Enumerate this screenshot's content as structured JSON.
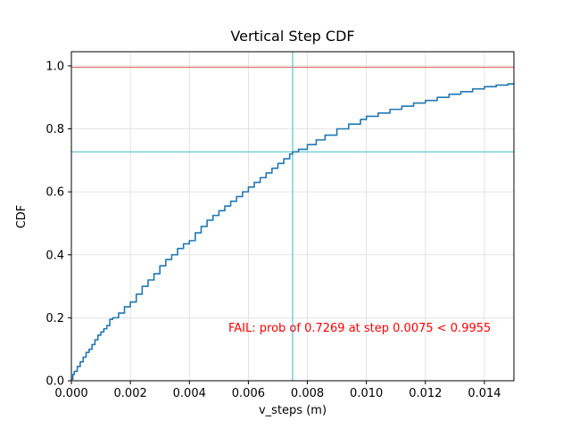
{
  "chart_data": {
    "type": "line",
    "style": "step-cdf",
    "title": "Vertical Step CDF",
    "xlabel": "v_steps (m)",
    "ylabel": "CDF",
    "xlim": [
      0.0,
      0.015
    ],
    "ylim": [
      0.0,
      1.045
    ],
    "grid": true,
    "x_ticks": [
      {
        "v": 0.0,
        "label": "0.000"
      },
      {
        "v": 0.002,
        "label": "0.002"
      },
      {
        "v": 0.004,
        "label": "0.004"
      },
      {
        "v": 0.006,
        "label": "0.006"
      },
      {
        "v": 0.008,
        "label": "0.008"
      },
      {
        "v": 0.01,
        "label": "0.010"
      },
      {
        "v": 0.012,
        "label": "0.012"
      },
      {
        "v": 0.014,
        "label": "0.014"
      }
    ],
    "y_ticks": [
      {
        "v": 0.0,
        "label": "0.0"
      },
      {
        "v": 0.2,
        "label": "0.2"
      },
      {
        "v": 0.4,
        "label": "0.4"
      },
      {
        "v": 0.6,
        "label": "0.6"
      },
      {
        "v": 0.8,
        "label": "0.8"
      },
      {
        "v": 1.0,
        "label": "1.0"
      }
    ],
    "pass_threshold": 0.9955,
    "prob_at_step": 0.7269,
    "step_value": 0.0075,
    "annotation": {
      "text": "FAIL: prob of 0.7269 at step 0.0075 < 0.9955",
      "color": "#ff0000"
    },
    "colors": {
      "curve": "#1f77b4",
      "pass_threshold_line": "#e0756b",
      "marker_lines": "#55c3cf",
      "grid": "#dcdcdc",
      "axis": "#000000"
    },
    "points": [
      [
        0.0,
        0.005
      ],
      [
        5e-05,
        0.02
      ],
      [
        0.0001,
        0.03
      ],
      [
        0.0002,
        0.045
      ],
      [
        0.0003,
        0.06
      ],
      [
        0.0004,
        0.075
      ],
      [
        0.0005,
        0.09
      ],
      [
        0.0006,
        0.1
      ],
      [
        0.0007,
        0.115
      ],
      [
        0.0008,
        0.13
      ],
      [
        0.0009,
        0.145
      ],
      [
        0.001,
        0.155
      ],
      [
        0.0011,
        0.165
      ],
      [
        0.0012,
        0.175
      ],
      [
        0.0013,
        0.195
      ],
      [
        0.0014,
        0.2
      ],
      [
        0.0016,
        0.215
      ],
      [
        0.0018,
        0.235
      ],
      [
        0.002,
        0.25
      ],
      [
        0.0022,
        0.275
      ],
      [
        0.0024,
        0.3
      ],
      [
        0.0026,
        0.32
      ],
      [
        0.0028,
        0.34
      ],
      [
        0.003,
        0.365
      ],
      [
        0.0032,
        0.385
      ],
      [
        0.0034,
        0.4
      ],
      [
        0.0036,
        0.42
      ],
      [
        0.0038,
        0.435
      ],
      [
        0.004,
        0.445
      ],
      [
        0.0042,
        0.47
      ],
      [
        0.0044,
        0.49
      ],
      [
        0.0046,
        0.51
      ],
      [
        0.0048,
        0.525
      ],
      [
        0.005,
        0.54
      ],
      [
        0.0052,
        0.555
      ],
      [
        0.0054,
        0.57
      ],
      [
        0.0056,
        0.585
      ],
      [
        0.0058,
        0.6
      ],
      [
        0.006,
        0.615
      ],
      [
        0.0062,
        0.63
      ],
      [
        0.0064,
        0.645
      ],
      [
        0.0066,
        0.66
      ],
      [
        0.0068,
        0.675
      ],
      [
        0.007,
        0.69
      ],
      [
        0.0072,
        0.705
      ],
      [
        0.0074,
        0.72
      ],
      [
        0.0075,
        0.727
      ],
      [
        0.0077,
        0.735
      ],
      [
        0.008,
        0.75
      ],
      [
        0.0083,
        0.765
      ],
      [
        0.0086,
        0.78
      ],
      [
        0.009,
        0.8
      ],
      [
        0.0094,
        0.815
      ],
      [
        0.0098,
        0.83
      ],
      [
        0.01,
        0.84
      ],
      [
        0.0104,
        0.85
      ],
      [
        0.0108,
        0.862
      ],
      [
        0.0112,
        0.872
      ],
      [
        0.0116,
        0.882
      ],
      [
        0.012,
        0.89
      ],
      [
        0.0124,
        0.9
      ],
      [
        0.0128,
        0.91
      ],
      [
        0.0132,
        0.918
      ],
      [
        0.0136,
        0.927
      ],
      [
        0.014,
        0.934
      ],
      [
        0.0144,
        0.939
      ],
      [
        0.0148,
        0.943
      ],
      [
        0.015,
        0.945
      ]
    ]
  }
}
